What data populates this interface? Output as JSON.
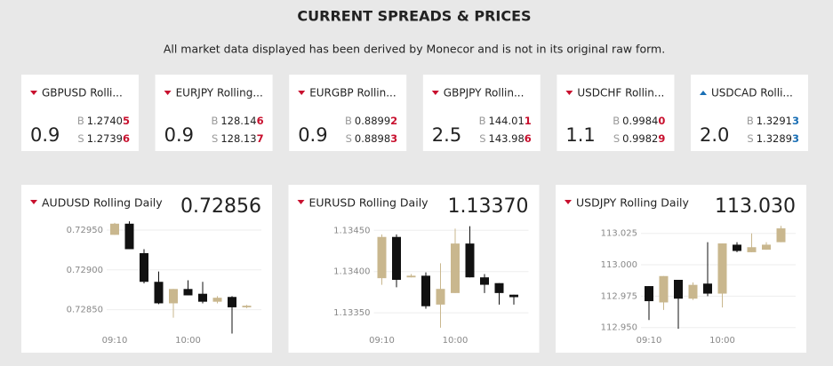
{
  "header": {
    "title": "CURRENT SPREADS & PRICES",
    "subtitle": "All market data displayed has been derived by Monecor and is not in its original raw form."
  },
  "labels": {
    "bid": "B",
    "sell": "S"
  },
  "tickers": [
    {
      "name": "GBPUSD Rolli...",
      "direction": "down",
      "spread": "0.9",
      "bid": {
        "main": "1.2740",
        "pip": "5"
      },
      "sell": {
        "main": "1.2739",
        "pip": "6"
      }
    },
    {
      "name": "EURJPY Rolling...",
      "direction": "down",
      "spread": "0.9",
      "bid": {
        "main": "128.14",
        "pip": "6"
      },
      "sell": {
        "main": "128.13",
        "pip": "7"
      }
    },
    {
      "name": "EURGBP Rollin...",
      "direction": "down",
      "spread": "0.9",
      "bid": {
        "main": "0.8899",
        "pip": "2"
      },
      "sell": {
        "main": "0.8898",
        "pip": "3"
      }
    },
    {
      "name": "GBPJPY Rollin...",
      "direction": "down",
      "spread": "2.5",
      "bid": {
        "main": "144.01",
        "pip": "1"
      },
      "sell": {
        "main": "143.98",
        "pip": "6"
      }
    },
    {
      "name": "USDCHF Rollin...",
      "direction": "down",
      "spread": "1.1",
      "bid": {
        "main": "0.9984",
        "pip": "0"
      },
      "sell": {
        "main": "0.9982",
        "pip": "9"
      }
    },
    {
      "name": "USDCAD Rolli...",
      "direction": "up",
      "spread": "2.0",
      "bid": {
        "main": "1.3291",
        "pip": "3"
      },
      "sell": {
        "main": "1.3289",
        "pip": "3"
      }
    }
  ],
  "chart_data": [
    {
      "type": "candlestick",
      "title": "AUDUSD Rolling Daily",
      "direction": "down",
      "price": "0.72856",
      "categories": [
        "09:10",
        null,
        null,
        null,
        null,
        "10:00",
        null,
        null,
        null,
        null
      ],
      "series": {
        "open": [
          0.72944,
          0.72958,
          0.72921,
          0.72885,
          0.72858,
          0.72876,
          0.7287,
          0.7286,
          0.72866,
          0.72853
        ],
        "high": [
          0.72959,
          0.72961,
          0.72926,
          0.72898,
          0.72876,
          0.72887,
          0.72885,
          0.72867,
          0.72867,
          0.72856
        ],
        "low": [
          0.72944,
          0.72926,
          0.72883,
          0.72857,
          0.7284,
          0.72868,
          0.72858,
          0.72858,
          0.7282,
          0.72852
        ],
        "close": [
          0.72958,
          0.72926,
          0.72885,
          0.72858,
          0.72876,
          0.72868,
          0.7286,
          0.72865,
          0.72853,
          0.72855
        ]
      },
      "up_color": "#c9b78e",
      "down_color": "#111111",
      "ylim": [
        0.72815,
        0.7296
      ],
      "yticks": [
        {
          "value": 0.7285,
          "label": "0.72850"
        },
        {
          "value": 0.729,
          "label": "0.72900"
        },
        {
          "value": 0.7295,
          "label": "0.72950"
        }
      ]
    },
    {
      "type": "candlestick",
      "title": "EURUSD Rolling Daily",
      "direction": "down",
      "price": "1.13370",
      "categories": [
        "09:10",
        null,
        null,
        null,
        null,
        "10:00",
        null,
        null,
        null,
        null
      ],
      "series": {
        "open": [
          1.13392,
          1.13442,
          1.13393,
          1.13395,
          1.1336,
          1.13374,
          1.13434,
          1.13393,
          1.13386,
          1.13372
        ],
        "high": [
          1.13445,
          1.13445,
          1.13397,
          1.13399,
          1.1341,
          1.13452,
          1.13455,
          1.13397,
          1.13386,
          1.13372
        ],
        "low": [
          1.13384,
          1.13381,
          1.13393,
          1.13355,
          1.13332,
          1.13374,
          1.13393,
          1.13374,
          1.1336,
          1.1336
        ],
        "close": [
          1.13442,
          1.1339,
          1.13395,
          1.13358,
          1.13379,
          1.13434,
          1.13393,
          1.13384,
          1.13374,
          1.13369
        ]
      },
      "up_color": "#c9b78e",
      "down_color": "#111111",
      "ylim": [
        1.1332,
        1.1346
      ],
      "yticks": [
        {
          "value": 1.1335,
          "label": "1.13350"
        },
        {
          "value": 1.134,
          "label": "1.13400"
        },
        {
          "value": 1.1345,
          "label": "1.13450"
        }
      ]
    },
    {
      "type": "candlestick",
      "title": "USDJPY Rolling Daily",
      "direction": "down",
      "price": "113.030",
      "categories": [
        "09:10",
        null,
        null,
        null,
        null,
        "10:00",
        null,
        null,
        null,
        null
      ],
      "series": {
        "open": [
          112.983,
          112.97,
          112.988,
          112.973,
          112.985,
          112.977,
          113.016,
          113.01,
          113.012,
          113.018
        ],
        "high": [
          112.983,
          112.991,
          112.988,
          112.986,
          113.018,
          113.017,
          113.018,
          113.025,
          113.018,
          113.031
        ],
        "low": [
          112.956,
          112.964,
          112.949,
          112.972,
          112.975,
          112.966,
          113.01,
          113.01,
          113.012,
          113.018
        ],
        "close": [
          112.971,
          112.991,
          112.973,
          112.984,
          112.977,
          113.017,
          113.011,
          113.014,
          113.016,
          113.029
        ]
      },
      "up_color": "#c9b78e",
      "down_color": "#111111",
      "ylim": [
        112.942,
        113.034
      ],
      "yticks": [
        {
          "value": 112.95,
          "label": "112.950"
        },
        {
          "value": 112.975,
          "label": "112.975"
        },
        {
          "value": 113,
          "label": "113.000"
        },
        {
          "value": 113.025,
          "label": "113.025"
        }
      ]
    }
  ]
}
